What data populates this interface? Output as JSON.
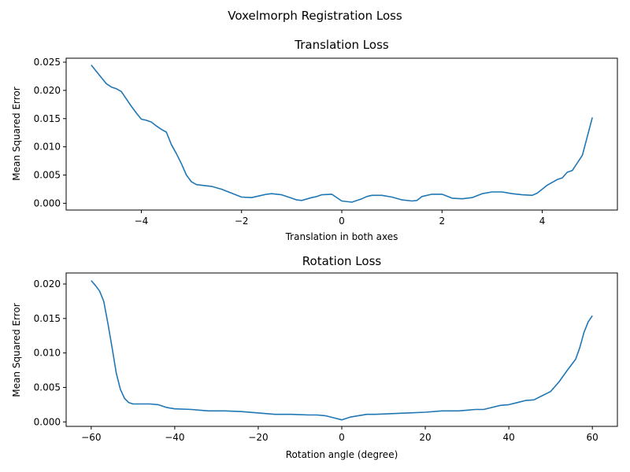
{
  "figure": {
    "suptitle": "Voxelmorph Registration Loss"
  },
  "chart_data": [
    {
      "type": "line",
      "title": "Translation Loss",
      "xlabel": "Translation in both axes",
      "ylabel": "Mean Squared Error",
      "xlim": [
        -5.5,
        5.5
      ],
      "ylim": [
        -0.0012,
        0.0257
      ],
      "xticks": [
        -4,
        -2,
        0,
        2,
        4
      ],
      "xtick_labels": [
        "−4",
        "−2",
        "0",
        "2",
        "4"
      ],
      "yticks": [
        0.0,
        0.005,
        0.01,
        0.015,
        0.02,
        0.025
      ],
      "ytick_labels": [
        "0.000",
        "0.005",
        "0.010",
        "0.015",
        "0.020",
        "0.025"
      ],
      "grid": false,
      "series": [
        {
          "color": "#1f77b4",
          "x": [
            -5.0,
            -4.8,
            -4.7,
            -4.6,
            -4.5,
            -4.4,
            -4.3,
            -4.2,
            -4.1,
            -4.0,
            -3.9,
            -3.8,
            -3.7,
            -3.6,
            -3.5,
            -3.4,
            -3.3,
            -3.2,
            -3.1,
            -3.0,
            -2.9,
            -2.8,
            -2.6,
            -2.4,
            -2.2,
            -2.0,
            -1.8,
            -1.6,
            -1.5,
            -1.4,
            -1.2,
            -1.0,
            -0.9,
            -0.8,
            -0.6,
            -0.5,
            -0.4,
            -0.2,
            0.0,
            0.2,
            0.4,
            0.5,
            0.6,
            0.8,
            1.0,
            1.2,
            1.4,
            1.5,
            1.6,
            1.8,
            2.0,
            2.2,
            2.4,
            2.6,
            2.8,
            3.0,
            3.2,
            3.4,
            3.6,
            3.8,
            3.9,
            4.0,
            4.1,
            4.2,
            4.3,
            4.4,
            4.5,
            4.6,
            4.8,
            5.0
          ],
          "y": [
            0.0245,
            0.0223,
            0.0212,
            0.0206,
            0.0203,
            0.0198,
            0.0185,
            0.0172,
            0.016,
            0.0149,
            0.0147,
            0.0144,
            0.0137,
            0.0131,
            0.0126,
            0.0104,
            0.0088,
            0.007,
            0.005,
            0.0038,
            0.0033,
            0.0032,
            0.003,
            0.0025,
            0.0018,
            0.0011,
            0.001,
            0.0014,
            0.0016,
            0.0017,
            0.0015,
            0.0009,
            0.0006,
            0.0005,
            0.001,
            0.0012,
            0.0015,
            0.0016,
            0.0004,
            0.0002,
            0.0008,
            0.0012,
            0.0014,
            0.0014,
            0.0011,
            0.0006,
            0.0004,
            0.0005,
            0.0012,
            0.0016,
            0.0016,
            0.0009,
            0.0008,
            0.001,
            0.0017,
            0.002,
            0.002,
            0.0017,
            0.0015,
            0.0014,
            0.0018,
            0.0025,
            0.0032,
            0.0037,
            0.0042,
            0.0045,
            0.0055,
            0.0058,
            0.0085,
            0.0152
          ]
        }
      ]
    },
    {
      "type": "line",
      "title": "Rotation Loss",
      "xlabel": "Rotation angle (degree)",
      "ylabel": "Mean Squared Error",
      "xlim": [
        -66,
        66
      ],
      "ylim": [
        -0.00065,
        0.0216
      ],
      "xticks": [
        -60,
        -40,
        -20,
        0,
        20,
        40,
        60
      ],
      "xtick_labels": [
        "−60",
        "−40",
        "−20",
        "0",
        "20",
        "40",
        "60"
      ],
      "yticks": [
        0.0,
        0.005,
        0.01,
        0.015,
        0.02
      ],
      "ytick_labels": [
        "0.000",
        "0.005",
        "0.010",
        "0.015",
        "0.020"
      ],
      "grid": false,
      "series": [
        {
          "color": "#1f77b4",
          "x": [
            -60,
            -59,
            -58,
            -57,
            -56,
            -55,
            -54,
            -53,
            -52,
            -51,
            -50,
            -49,
            -48,
            -47,
            -46,
            -44,
            -42,
            -40,
            -36,
            -32,
            -28,
            -24,
            -20,
            -16,
            -12,
            -8,
            -6,
            -4,
            -2,
            0,
            2,
            4,
            6,
            8,
            12,
            16,
            20,
            24,
            26,
            28,
            30,
            32,
            34,
            36,
            38,
            40,
            42,
            44,
            46,
            48,
            50,
            52,
            54,
            56,
            57,
            58,
            59,
            60
          ],
          "y": [
            0.0205,
            0.0198,
            0.019,
            0.0175,
            0.0143,
            0.0108,
            0.0071,
            0.0047,
            0.0034,
            0.0028,
            0.0026,
            0.0026,
            0.0026,
            0.0026,
            0.0026,
            0.0025,
            0.0021,
            0.0019,
            0.0018,
            0.0016,
            0.0016,
            0.0015,
            0.0013,
            0.0011,
            0.0011,
            0.001,
            0.001,
            0.0009,
            0.0006,
            0.0003,
            0.0007,
            0.0009,
            0.0011,
            0.0011,
            0.0012,
            0.0013,
            0.0014,
            0.0016,
            0.0016,
            0.0016,
            0.0017,
            0.0018,
            0.0018,
            0.0021,
            0.0024,
            0.0025,
            0.0028,
            0.0031,
            0.0032,
            0.0038,
            0.0044,
            0.0058,
            0.0075,
            0.0091,
            0.0108,
            0.013,
            0.0145,
            0.0154
          ]
        }
      ]
    }
  ]
}
